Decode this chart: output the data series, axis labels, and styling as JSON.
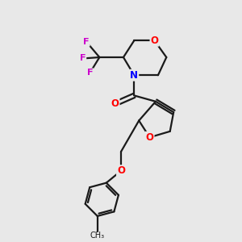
{
  "background_color": "#e8e8e8",
  "bond_color": "#1a1a1a",
  "bond_width": 1.6,
  "atom_colors": {
    "O": "#ff0000",
    "N": "#0000ff",
    "F": "#cc00cc",
    "C": "#1a1a1a"
  },
  "font_size_atom": 8.5,
  "figsize": [
    3.0,
    3.0
  ],
  "dpi": 100
}
